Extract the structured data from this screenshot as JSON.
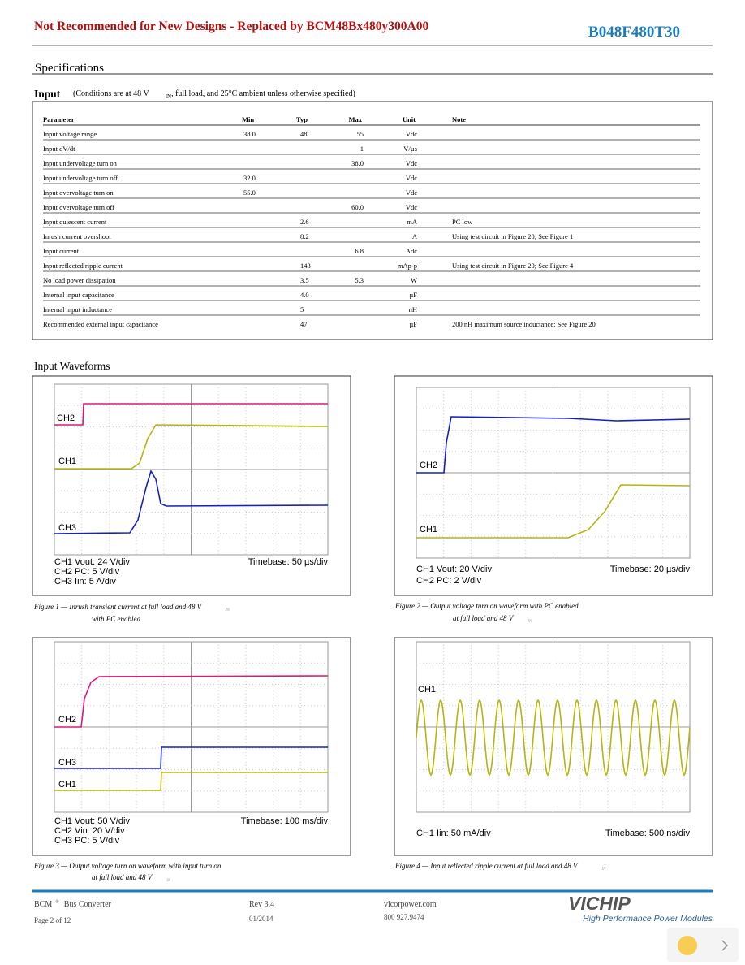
{
  "header": {
    "banner": "Not Recommended for New Designs - Replaced by BCM48Bx480y300A00",
    "part_number": "B048F480T30"
  },
  "section_title": "Specifications",
  "input": {
    "heading": "Input",
    "conditions_start": "(Conditions are at 48 V",
    "conditions_sub": "IN",
    "conditions_end": ", full load, and 25°C ambient unless otherwise specified)"
  },
  "table": {
    "header": [
      "Parameter",
      "Min",
      "Typ",
      "Max",
      "Unit",
      "Note"
    ],
    "rows": [
      {
        "parameter": "Input voltage range",
        "min": "38.0",
        "typ": "48",
        "max": "55",
        "unit": "Vdc"
      },
      {
        "parameter": "Input dV/dt",
        "max": "1",
        "unit": "V/µs"
      },
      {
        "parameter": "Input undervoltage turn on",
        "max": "38.0",
        "unit": "Vdc"
      },
      {
        "parameter": "Input undervoltage turn off",
        "min": "32.0",
        "unit": "Vdc"
      },
      {
        "parameter": "Input overvoltage turn on",
        "min": "55.0",
        "unit": "Vdc"
      },
      {
        "parameter": "Input overvoltage turn off",
        "max": "60.0",
        "unit": "Vdc"
      },
      {
        "parameter": "Input quiescent current",
        "typ": "2.6",
        "unit": "mA",
        "note": "PC low"
      },
      {
        "parameter": "Inrush current overshoot",
        "typ": "8.2",
        "unit": "A",
        "note": "Using test circuit in Figure 20; See Figure 1"
      },
      {
        "parameter": "Input current",
        "max": "6.8",
        "unit": "Adc"
      },
      {
        "parameter": "Input reflected ripple current",
        "typ": "143",
        "unit": "mAp-p",
        "note": "Using test circuit in Figure 20; See Figure 4"
      },
      {
        "parameter": "No load power dissipation",
        "typ": "3.5",
        "max": "5.3",
        "unit": "W"
      },
      {
        "parameter": "Internal input capacitance",
        "typ": "4.0",
        "unit": "µF"
      },
      {
        "parameter": "Internal input inductance",
        "typ": "5",
        "unit": "nH"
      },
      {
        "parameter": "Recommended external input capacitance",
        "typ": "47",
        "unit": "µF",
        "note": "200 nH maximum source inductance; See Figure 20"
      }
    ]
  },
  "waveforms_title": "Input Waveforms",
  "figures": [
    {
      "channels": [
        "CH2",
        "CH1",
        "CH3"
      ],
      "scales": [
        "CH1 Vout: 24 V/div",
        "CH2 PC: 5 V/div",
        "CH3 Iin: 5 A/div"
      ],
      "timebase": "Timebase: 50 µs/div",
      "caption": "Figure 1 — Inrush transient current at full load and 48 V",
      "caption_sub": "IN",
      "caption_line2": "with PC enabled"
    },
    {
      "channels": [
        "CH2",
        "CH1"
      ],
      "scales": [
        "CH1 Vout: 20 V/div",
        "CH2 PC: 2 V/div"
      ],
      "timebase": "Timebase: 20 µs/div",
      "caption": "Figure 2 — Output voltage turn on waveform with PC enabled",
      "caption_line2": "at full load and 48 V",
      "caption_sub": "IN"
    },
    {
      "channels": [
        "CH2",
        "CH3",
        "CH1"
      ],
      "scales": [
        "CH1 Vout: 50 V/div",
        "CH2 Vin: 20 V/div",
        "CH3 PC: 5 V/div"
      ],
      "timebase": "Timebase: 100 ms/div",
      "caption": "Figure 3 — Output voltage turn on waveform with input turn on",
      "caption_line2": "at full load and 48 V",
      "caption_sub": "IN"
    },
    {
      "channels": [
        "CH1"
      ],
      "scales": [
        "CH1 Iin: 50 mA/div"
      ],
      "timebase": "Timebase: 500 ns/div",
      "caption": "Figure 4 — Input reflected ripple current at full load and 48 V",
      "caption_sub": "IN"
    }
  ],
  "footer": {
    "product": "BCM",
    "reg": "®",
    "product_type": "Bus Converter",
    "revision": "Rev 3.4",
    "website": "vicorpower.com",
    "page": "Page 2 of 12",
    "date": "01/2014",
    "phone": "800 927.9474",
    "logo": "VICHIP",
    "tagline": "High Performance Power Modules"
  }
}
